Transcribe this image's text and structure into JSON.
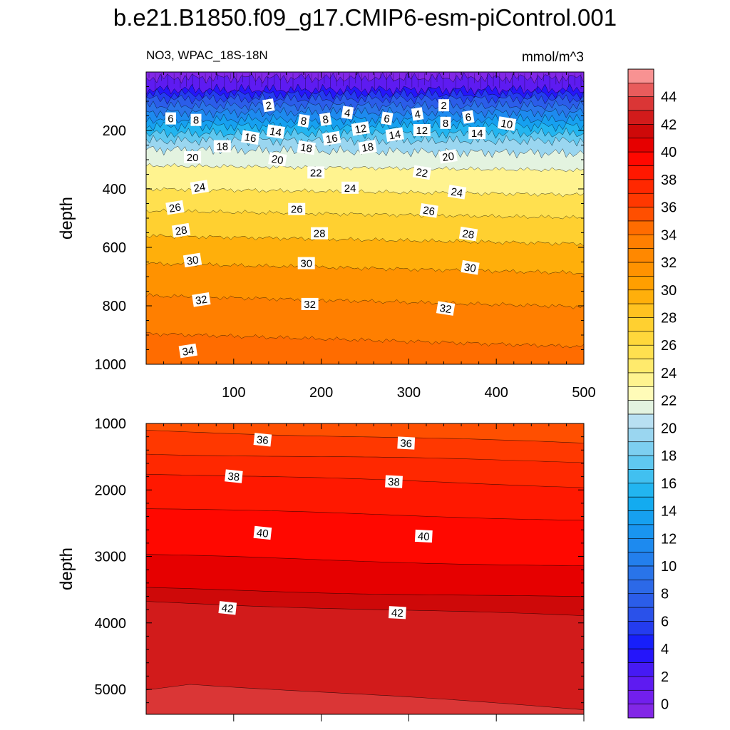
{
  "title": "b.e21.B1850.f09_g17.CMIP6-esm-piControl.001",
  "chart_data": [
    {
      "type": "heatmap",
      "subtitle_left": "NO3, WPAC_18S-18N",
      "subtitle_right": "mmol/m^3",
      "ylabel": "depth",
      "xlim": [
        0,
        500
      ],
      "ylim": [
        1000,
        0
      ],
      "x_ticks": [
        100,
        200,
        300,
        400,
        500
      ],
      "x_tick_labels": [
        "100",
        "200",
        "300",
        "400",
        "500"
      ],
      "y_ticks": [
        200,
        400,
        600,
        800,
        1000
      ],
      "y_tick_labels": [
        "200",
        "400",
        "600",
        "800",
        "1000"
      ],
      "contour_levels": [
        {
          "value": 0,
          "depth": 20
        },
        {
          "value": 2,
          "depth": 60
        },
        {
          "value": 4,
          "depth": 75
        },
        {
          "value": 6,
          "depth": 92
        },
        {
          "value": 8,
          "depth": 115
        },
        {
          "value": 10,
          "depth": 138
        },
        {
          "value": 12,
          "depth": 162
        },
        {
          "value": 14,
          "depth": 185
        },
        {
          "value": 16,
          "depth": 210
        },
        {
          "value": 18,
          "depth": 235
        },
        {
          "value": 20,
          "depth": 265
        },
        {
          "value": 22,
          "depth": 320
        },
        {
          "value": 24,
          "depth": 400
        },
        {
          "value": 26,
          "depth": 475
        },
        {
          "value": 28,
          "depth": 560
        },
        {
          "value": 30,
          "depth": 655
        },
        {
          "value": 32,
          "depth": 765
        },
        {
          "value": 34,
          "depth": 895
        }
      ],
      "contour_labels": [
        {
          "text": "2",
          "x": 140,
          "depth": 115
        },
        {
          "text": "2",
          "x": 340,
          "depth": 115
        },
        {
          "text": "4",
          "x": 230,
          "depth": 140
        },
        {
          "text": "4",
          "x": 310,
          "depth": 145
        },
        {
          "text": "6",
          "x": 28,
          "depth": 160
        },
        {
          "text": "6",
          "x": 275,
          "depth": 160
        },
        {
          "text": "6",
          "x": 368,
          "depth": 155
        },
        {
          "text": "8",
          "x": 57,
          "depth": 165
        },
        {
          "text": "8",
          "x": 180,
          "depth": 168
        },
        {
          "text": "8",
          "x": 205,
          "depth": 163
        },
        {
          "text": "8",
          "x": 342,
          "depth": 175
        },
        {
          "text": "10",
          "x": 412,
          "depth": 178
        },
        {
          "text": "12",
          "x": 245,
          "depth": 195
        },
        {
          "text": "12",
          "x": 315,
          "depth": 200
        },
        {
          "text": "14",
          "x": 148,
          "depth": 205
        },
        {
          "text": "14",
          "x": 284,
          "depth": 215
        },
        {
          "text": "14",
          "x": 378,
          "depth": 210
        },
        {
          "text": "16",
          "x": 119,
          "depth": 225
        },
        {
          "text": "16",
          "x": 212,
          "depth": 228
        },
        {
          "text": "18",
          "x": 87,
          "depth": 255
        },
        {
          "text": "18",
          "x": 183,
          "depth": 260
        },
        {
          "text": "18",
          "x": 253,
          "depth": 258
        },
        {
          "text": "20",
          "x": 53,
          "depth": 293
        },
        {
          "text": "20",
          "x": 150,
          "depth": 300
        },
        {
          "text": "20",
          "x": 345,
          "depth": 290
        },
        {
          "text": "22",
          "x": 194,
          "depth": 345
        },
        {
          "text": "22",
          "x": 315,
          "depth": 345
        },
        {
          "text": "24",
          "x": 61,
          "depth": 395
        },
        {
          "text": "24",
          "x": 233,
          "depth": 397
        },
        {
          "text": "24",
          "x": 355,
          "depth": 412
        },
        {
          "text": "26",
          "x": 33,
          "depth": 465
        },
        {
          "text": "26",
          "x": 172,
          "depth": 470
        },
        {
          "text": "26",
          "x": 323,
          "depth": 475
        },
        {
          "text": "28",
          "x": 40,
          "depth": 543
        },
        {
          "text": "28",
          "x": 198,
          "depth": 553
        },
        {
          "text": "28",
          "x": 368,
          "depth": 555
        },
        {
          "text": "30",
          "x": 53,
          "depth": 645
        },
        {
          "text": "30",
          "x": 183,
          "depth": 655
        },
        {
          "text": "30",
          "x": 370,
          "depth": 670
        },
        {
          "text": "32",
          "x": 63,
          "depth": 780
        },
        {
          "text": "32",
          "x": 187,
          "depth": 795
        },
        {
          "text": "32",
          "x": 342,
          "depth": 810
        },
        {
          "text": "34",
          "x": 48,
          "depth": 955
        }
      ]
    },
    {
      "type": "heatmap",
      "ylabel": "depth",
      "xlim": [
        0,
        500
      ],
      "ylim": [
        5375,
        1000
      ],
      "y_ticks": [
        1000,
        2000,
        3000,
        4000,
        5000
      ],
      "y_tick_labels": [
        "1000",
        "2000",
        "3000",
        "4000",
        "5000"
      ],
      "contour_levels": [
        {
          "value": 36,
          "depth_left": 1100,
          "depth_right": 1300
        },
        {
          "value": 37,
          "depth_left": 1450,
          "depth_right": 1580
        },
        {
          "value": 38,
          "depth_left": 1750,
          "depth_right": 1950
        },
        {
          "value": 39,
          "depth_left": 2280,
          "depth_right": 2450
        },
        {
          "value": 40,
          "depth_left": 2980,
          "depth_right": 3150
        },
        {
          "value": 41,
          "depth_left": 3480,
          "depth_right": 3620
        },
        {
          "value": 42,
          "depth_left": 3680,
          "depth_right": 3900
        },
        {
          "value": 43,
          "depth_left": 5000,
          "depth_right": 5300
        }
      ],
      "contour_labels": [
        {
          "text": "36",
          "x": 133,
          "depth": 1250
        },
        {
          "text": "36",
          "x": 297,
          "depth": 1300
        },
        {
          "text": "38",
          "x": 100,
          "depth": 1800
        },
        {
          "text": "38",
          "x": 283,
          "depth": 1880
        },
        {
          "text": "40",
          "x": 133,
          "depth": 2650
        },
        {
          "text": "40",
          "x": 317,
          "depth": 2700
        },
        {
          "text": "42",
          "x": 93,
          "depth": 3780
        },
        {
          "text": "42",
          "x": 287,
          "depth": 3850
        }
      ]
    }
  ],
  "colorbar": {
    "min": -1,
    "max": 46,
    "step": 1,
    "tick_labels": [
      "0",
      "2",
      "4",
      "6",
      "8",
      "10",
      "12",
      "14",
      "16",
      "18",
      "20",
      "22",
      "24",
      "26",
      "28",
      "30",
      "32",
      "34",
      "36",
      "38",
      "40",
      "42",
      "44"
    ],
    "stops": [
      {
        "v": -1,
        "c": "#8a2be2"
      },
      {
        "v": 1,
        "c": "#6a1bf0"
      },
      {
        "v": 3,
        "c": "#3a1af5"
      },
      {
        "v": 4,
        "c": "#1010ff"
      },
      {
        "v": 6,
        "c": "#2a4bea"
      },
      {
        "v": 9,
        "c": "#2c6fe8"
      },
      {
        "v": 12,
        "c": "#1a8ff0"
      },
      {
        "v": 15,
        "c": "#12b0f0"
      },
      {
        "v": 17,
        "c": "#50c5f0"
      },
      {
        "v": 20,
        "c": "#a9d9f0"
      },
      {
        "v": 21,
        "c": "#c6e6f4"
      },
      {
        "v": 22,
        "c": "#ffffcc"
      },
      {
        "v": 24,
        "c": "#ffef7a"
      },
      {
        "v": 26,
        "c": "#ffdb40"
      },
      {
        "v": 28,
        "c": "#ffcc2a"
      },
      {
        "v": 30,
        "c": "#ffa500"
      },
      {
        "v": 32,
        "c": "#ff8c00"
      },
      {
        "v": 34,
        "c": "#ff7a00"
      },
      {
        "v": 36,
        "c": "#ff4000"
      },
      {
        "v": 38,
        "c": "#ff2000"
      },
      {
        "v": 40,
        "c": "#ff0000"
      },
      {
        "v": 41,
        "c": "#cc0000"
      },
      {
        "v": 43,
        "c": "#d42424"
      },
      {
        "v": 44,
        "c": "#e04848"
      },
      {
        "v": 45,
        "c": "#f07070"
      },
      {
        "v": 46,
        "c": "#ffb3b3"
      }
    ]
  }
}
